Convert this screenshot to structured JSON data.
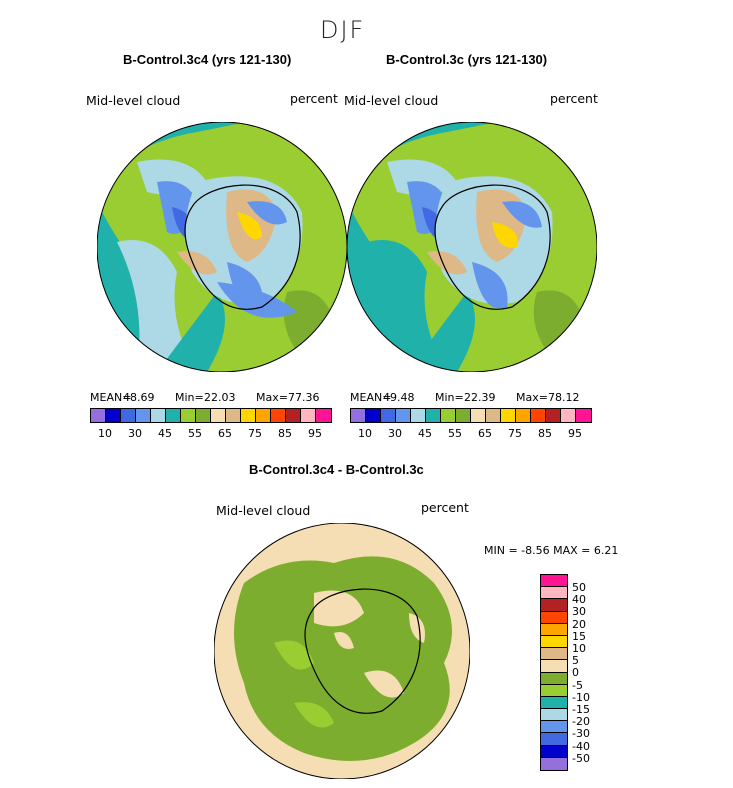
{
  "season": "DJF",
  "panel1": {
    "title": "B-Control.3c4 (yrs 121-130)",
    "variable": "Mid-level cloud",
    "units": "percent",
    "mean_label": "MEAN=",
    "mean": "48.69",
    "min_label": "Min=",
    "min": "22.03",
    "max_label": "Max=",
    "max": "77.36"
  },
  "panel2": {
    "title": "B-Control.3c (yrs 121-130)",
    "variable": "Mid-level cloud",
    "units": "percent",
    "mean_label": "MEAN=",
    "mean": "49.48",
    "min_label": "Min=",
    "min": "22.39",
    "max_label": "Max=",
    "max": "78.12"
  },
  "colorbar_ticks": [
    "10",
    "30",
    "45",
    "55",
    "65",
    "75",
    "85",
    "95"
  ],
  "colorbar_colors": [
    "#9370db",
    "#0000cd",
    "#4169e1",
    "#6495ed",
    "#add8e6",
    "#20b2aa",
    "#9acd32",
    "#7cad2e",
    "#f5deb3",
    "#deb887",
    "#ffd700",
    "#ffa500",
    "#ff4500",
    "#b22222",
    "#ffb6c1",
    "#ff1493"
  ],
  "panel3": {
    "title": "B-Control.3c4 - B-Control.3c",
    "variable": "Mid-level cloud",
    "units": "percent",
    "minmax_text": "MIN =   -8.56  MAX =    6.21"
  },
  "diff_colorbar": {
    "labels": [
      "50",
      "40",
      "30",
      "20",
      "15",
      "10",
      "5",
      "0",
      "-5",
      "-10",
      "-15",
      "-20",
      "-30",
      "-40",
      "-50"
    ],
    "colors": [
      "#ff1493",
      "#ffb6c1",
      "#b22222",
      "#ff4500",
      "#ffa500",
      "#ffd700",
      "#deb887",
      "#f5deb3",
      "#7cad2e",
      "#9acd32",
      "#20b2aa",
      "#add8e6",
      "#6495ed",
      "#4169e1",
      "#0000cd",
      "#9370db"
    ]
  }
}
